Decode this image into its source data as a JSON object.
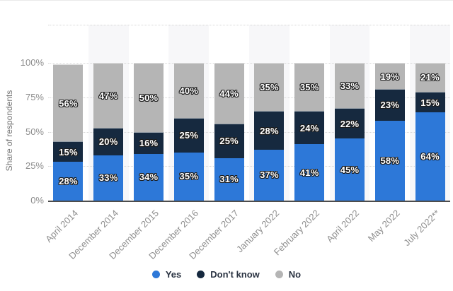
{
  "y_axis": {
    "title": "Share of respondents",
    "ticks": [
      {
        "label": "100%",
        "value": 100
      },
      {
        "label": "75%",
        "value": 75
      },
      {
        "label": "50%",
        "value": 50
      },
      {
        "label": "25%",
        "value": 25
      },
      {
        "label": "0%",
        "value": 0
      }
    ]
  },
  "style": {
    "background": "#ffffff",
    "stripe": "#f7f7f9",
    "gridline": "#d6d6d6",
    "axis_line": "#4d4d4d",
    "tick_text": "#8c8c8c",
    "bar_label_text": "#ffffff"
  },
  "chart_data": {
    "type": "bar",
    "stacked": true,
    "stacking": "percent",
    "title": "",
    "xlabel": "",
    "ylabel": "Share of respondents",
    "ylim": [
      0,
      100
    ],
    "grid": "horizontal dotted every 25%",
    "legend_position": "bottom center",
    "data_labels": "percentage shown on every segment",
    "categories": [
      "April 2014",
      "December 2014",
      "December 2015",
      "December 2016",
      "December 2017",
      "January 2022",
      "February 2022",
      "April 2022",
      "May 2022",
      "July 2022**"
    ],
    "series": [
      {
        "name": "Yes",
        "color": "#2d78d8",
        "values": [
          28,
          33,
          34,
          35,
          31,
          37,
          41,
          45,
          58,
          64
        ]
      },
      {
        "name": "Don't know",
        "color": "#16293f",
        "values": [
          15,
          20,
          16,
          25,
          25,
          28,
          24,
          22,
          23,
          15
        ]
      },
      {
        "name": "No",
        "color": "#b5b5b5",
        "values": [
          56,
          47,
          50,
          40,
          44,
          35,
          35,
          33,
          19,
          21
        ]
      }
    ]
  }
}
